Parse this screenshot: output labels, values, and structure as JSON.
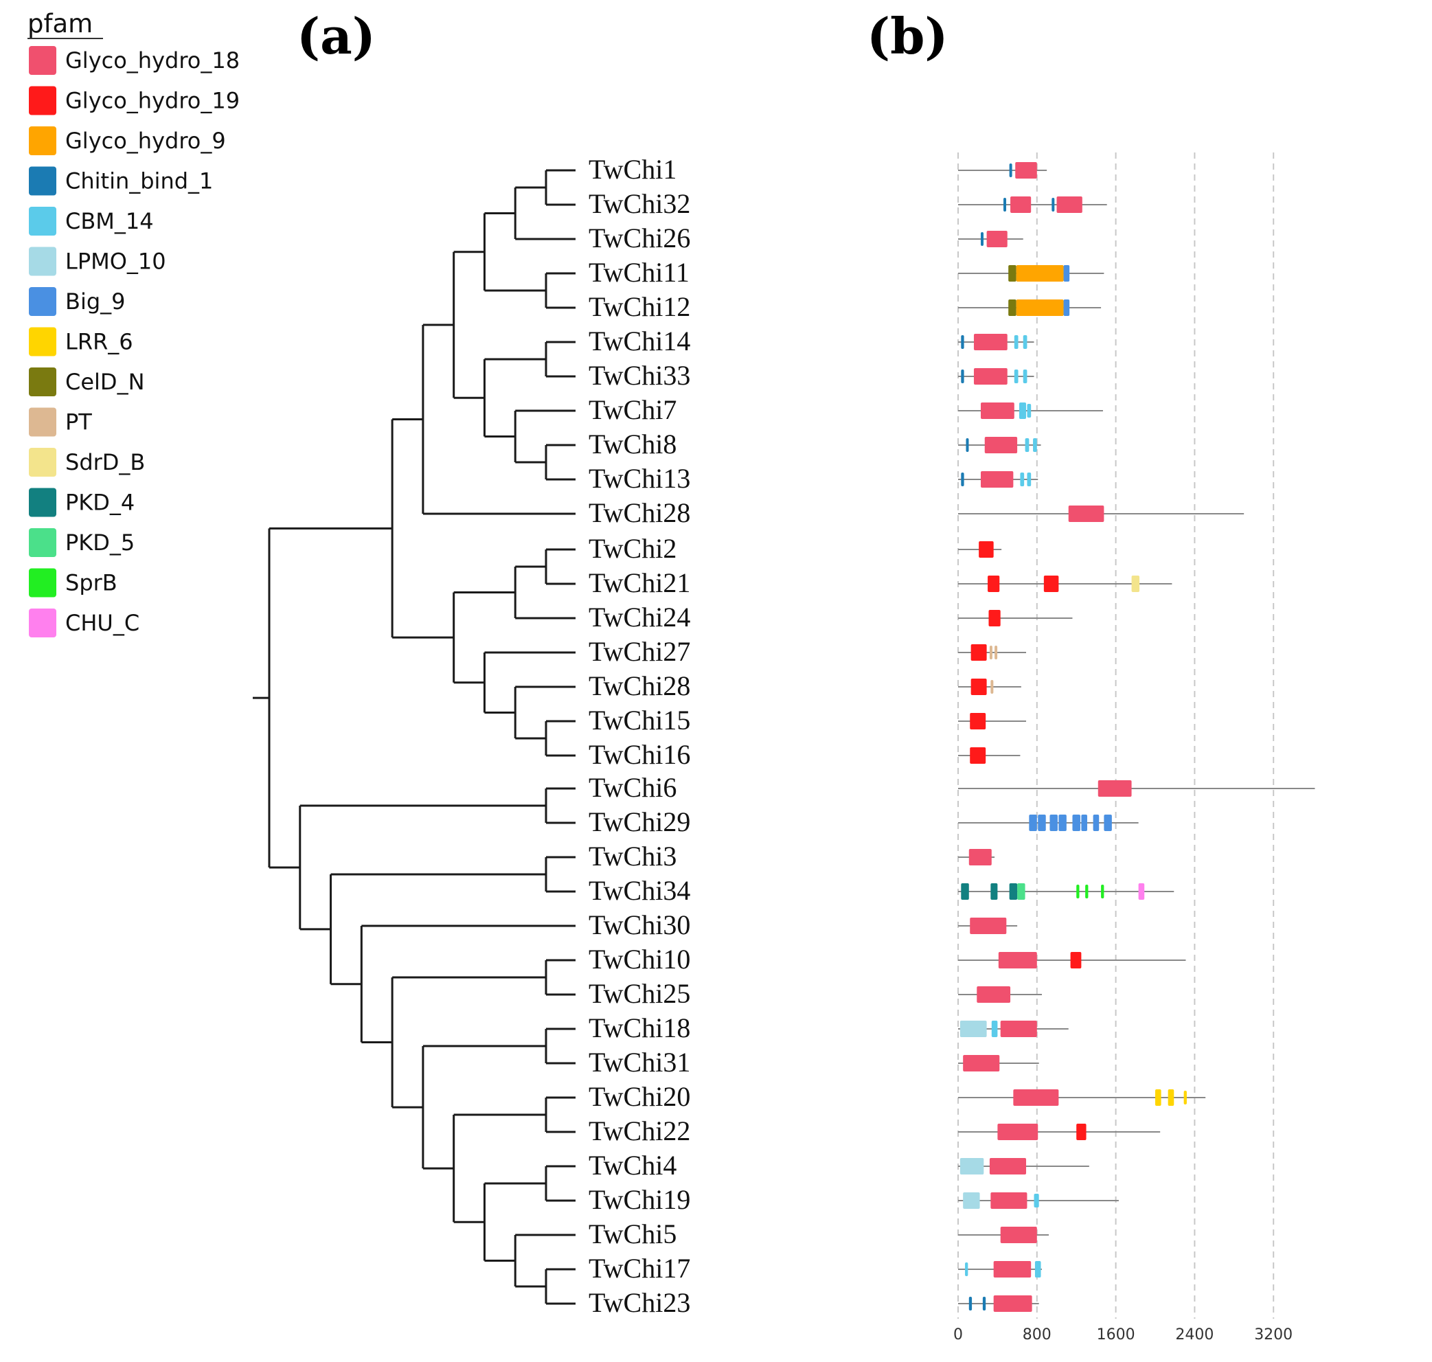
{
  "legend": {
    "title": "pfam",
    "items": [
      {
        "name": "Glyco_hydro_18",
        "color": "#F0506E"
      },
      {
        "name": "Glyco_hydro_19",
        "color": "#FF1A1A"
      },
      {
        "name": "Glyco_hydro_9",
        "color": "#FFA500"
      },
      {
        "name": "Chitin_bind_1",
        "color": "#1B7BB3"
      },
      {
        "name": "CBM_14",
        "color": "#5BCBEA"
      },
      {
        "name": "LPMO_10",
        "color": "#A6DAE6"
      },
      {
        "name": "Big_9",
        "color": "#4A90E2"
      },
      {
        "name": "LRR_6",
        "color": "#FFD500"
      },
      {
        "name": "CelD_N",
        "color": "#7A7A10"
      },
      {
        "name": "PT",
        "color": "#DDB892"
      },
      {
        "name": "SdrD_B",
        "color": "#F3E48C"
      },
      {
        "name": "PKD_4",
        "color": "#128080"
      },
      {
        "name": "PKD_5",
        "color": "#4BE08A"
      },
      {
        "name": "SprB",
        "color": "#22EE22"
      },
      {
        "name": "CHU_C",
        "color": "#FF80EE"
      }
    ]
  },
  "panels": {
    "a": "(a)",
    "b": "(b)"
  },
  "tree": {
    "leaves": [
      "TwChi1",
      "TwChi32",
      "TwChi26",
      "TwChi11",
      "TwChi12",
      "TwChi14",
      "TwChi33",
      "TwChi7",
      "TwChi8",
      "TwChi13",
      "TwChi28",
      "TwChi2",
      "TwChi21",
      "TwChi24",
      "TwChi27",
      "TwChi28",
      "TwChi15",
      "TwChi16",
      "TwChi6",
      "TwChi29",
      "TwChi3",
      "TwChi34",
      "TwChi30",
      "TwChi10",
      "TwChi25",
      "TwChi18",
      "TwChi31",
      "TwChi20",
      "TwChi22",
      "TwChi4",
      "TwChi19",
      "TwChi5",
      "TwChi17",
      "TwChi23"
    ],
    "newick": "(((((((TwChi1,TwChi32),TwChi26),(TwChi11,TwChi12)),((TwChi14,TwChi33),(TwChi7,(TwChi8,TwChi13)))),TwChi28),(((TwChi2,TwChi21),TwChi24),(TwChi27,(TwChi28,(TwChi15,TwChi16))))),((TwChi6,TwChi29),((TwChi3,TwChi34),(TwChi30,((TwChi10,TwChi25),((TwChi18,TwChi31),((TwChi20,TwChi22),((TwChi4,TwChi19),(TwChi5,(TwChi17,TwChi23))))))))));"
  },
  "chart_data": {
    "type": "domain-architecture",
    "axis": {
      "min": 0,
      "max": 3600,
      "ticks": [
        0,
        800,
        1600,
        2400,
        3200
      ]
    },
    "proteins": [
      {
        "name": "TwChi1",
        "length": 900,
        "domains": [
          {
            "pfam": "Chitin_bind_1",
            "start": 520,
            "end": 545
          },
          {
            "pfam": "Glyco_hydro_18",
            "start": 580,
            "end": 800
          }
        ]
      },
      {
        "name": "TwChi32",
        "length": 1510,
        "domains": [
          {
            "pfam": "Chitin_bind_1",
            "start": 460,
            "end": 485
          },
          {
            "pfam": "Glyco_hydro_18",
            "start": 530,
            "end": 740
          },
          {
            "pfam": "Chitin_bind_1",
            "start": 950,
            "end": 975
          },
          {
            "pfam": "Glyco_hydro_18",
            "start": 1000,
            "end": 1260
          }
        ]
      },
      {
        "name": "TwChi26",
        "length": 660,
        "domains": [
          {
            "pfam": "Chitin_bind_1",
            "start": 230,
            "end": 255
          },
          {
            "pfam": "Glyco_hydro_18",
            "start": 290,
            "end": 500
          }
        ]
      },
      {
        "name": "TwChi11",
        "length": 1480,
        "domains": [
          {
            "pfam": "CelD_N",
            "start": 510,
            "end": 590
          },
          {
            "pfam": "Glyco_hydro_9",
            "start": 590,
            "end": 1070
          },
          {
            "pfam": "Big_9",
            "start": 1070,
            "end": 1130
          }
        ]
      },
      {
        "name": "TwChi12",
        "length": 1450,
        "domains": [
          {
            "pfam": "CelD_N",
            "start": 510,
            "end": 590
          },
          {
            "pfam": "Glyco_hydro_9",
            "start": 590,
            "end": 1070
          },
          {
            "pfam": "Big_9",
            "start": 1070,
            "end": 1130
          }
        ]
      },
      {
        "name": "TwChi14",
        "length": 770,
        "domains": [
          {
            "pfam": "Chitin_bind_1",
            "start": 30,
            "end": 60
          },
          {
            "pfam": "Glyco_hydro_18",
            "start": 160,
            "end": 500
          },
          {
            "pfam": "CBM_14",
            "start": 570,
            "end": 610
          },
          {
            "pfam": "CBM_14",
            "start": 660,
            "end": 700
          }
        ]
      },
      {
        "name": "TwChi33",
        "length": 770,
        "domains": [
          {
            "pfam": "Chitin_bind_1",
            "start": 30,
            "end": 60
          },
          {
            "pfam": "Glyco_hydro_18",
            "start": 160,
            "end": 500
          },
          {
            "pfam": "CBM_14",
            "start": 570,
            "end": 610
          },
          {
            "pfam": "CBM_14",
            "start": 660,
            "end": 700
          }
        ]
      },
      {
        "name": "TwChi7",
        "length": 1470,
        "domains": [
          {
            "pfam": "Glyco_hydro_18",
            "start": 230,
            "end": 570
          },
          {
            "pfam": "CBM_14",
            "start": 620,
            "end": 690
          },
          {
            "pfam": "CBM_14",
            "start": 700,
            "end": 740
          }
        ]
      },
      {
        "name": "TwChi8",
        "length": 840,
        "domains": [
          {
            "pfam": "Chitin_bind_1",
            "start": 80,
            "end": 105
          },
          {
            "pfam": "Glyco_hydro_18",
            "start": 270,
            "end": 600
          },
          {
            "pfam": "CBM_14",
            "start": 680,
            "end": 720
          },
          {
            "pfam": "CBM_14",
            "start": 760,
            "end": 800
          }
        ]
      },
      {
        "name": "TwChi13",
        "length": 810,
        "domains": [
          {
            "pfam": "Chitin_bind_1",
            "start": 30,
            "end": 60
          },
          {
            "pfam": "Glyco_hydro_18",
            "start": 230,
            "end": 560
          },
          {
            "pfam": "CBM_14",
            "start": 630,
            "end": 670
          },
          {
            "pfam": "CBM_14",
            "start": 700,
            "end": 740
          }
        ]
      },
      {
        "name": "TwChi28",
        "length": 2900,
        "domains": [
          {
            "pfam": "Glyco_hydro_18",
            "start": 1120,
            "end": 1480
          }
        ]
      },
      {
        "name": "TwChi2",
        "length": 440,
        "domains": [
          {
            "pfam": "Glyco_hydro_19",
            "start": 210,
            "end": 360
          }
        ]
      },
      {
        "name": "TwChi21",
        "length": 2170,
        "domains": [
          {
            "pfam": "Glyco_hydro_19",
            "start": 300,
            "end": 420
          },
          {
            "pfam": "Glyco_hydro_19",
            "start": 870,
            "end": 1020
          },
          {
            "pfam": "SdrD_B",
            "start": 1760,
            "end": 1840
          }
        ]
      },
      {
        "name": "TwChi24",
        "length": 1160,
        "domains": [
          {
            "pfam": "Glyco_hydro_19",
            "start": 310,
            "end": 430
          }
        ]
      },
      {
        "name": "TwChi27",
        "length": 690,
        "domains": [
          {
            "pfam": "Glyco_hydro_19",
            "start": 130,
            "end": 290
          },
          {
            "pfam": "PT",
            "start": 320,
            "end": 345
          },
          {
            "pfam": "PT",
            "start": 370,
            "end": 395
          }
        ]
      },
      {
        "name": "TwChi28",
        "length": 640,
        "domains": [
          {
            "pfam": "Glyco_hydro_19",
            "start": 130,
            "end": 290
          },
          {
            "pfam": "PT",
            "start": 330,
            "end": 355
          }
        ]
      },
      {
        "name": "TwChi15",
        "length": 690,
        "domains": [
          {
            "pfam": "Glyco_hydro_19",
            "start": 120,
            "end": 280
          }
        ]
      },
      {
        "name": "TwChi16",
        "length": 630,
        "domains": [
          {
            "pfam": "Glyco_hydro_19",
            "start": 120,
            "end": 280
          }
        ]
      },
      {
        "name": "TwChi6",
        "length": 3620,
        "domains": [
          {
            "pfam": "Glyco_hydro_18",
            "start": 1420,
            "end": 1760
          }
        ]
      },
      {
        "name": "TwChi29",
        "length": 1830,
        "domains": [
          {
            "pfam": "Big_9",
            "start": 720,
            "end": 800
          },
          {
            "pfam": "Big_9",
            "start": 810,
            "end": 890
          },
          {
            "pfam": "Big_9",
            "start": 930,
            "end": 1010
          },
          {
            "pfam": "Big_9",
            "start": 1020,
            "end": 1100
          },
          {
            "pfam": "Big_9",
            "start": 1160,
            "end": 1240
          },
          {
            "pfam": "Big_9",
            "start": 1250,
            "end": 1310
          },
          {
            "pfam": "Big_9",
            "start": 1370,
            "end": 1430
          },
          {
            "pfam": "Big_9",
            "start": 1480,
            "end": 1560
          }
        ]
      },
      {
        "name": "TwChi3",
        "length": 370,
        "domains": [
          {
            "pfam": "Glyco_hydro_18",
            "start": 110,
            "end": 340
          }
        ]
      },
      {
        "name": "TwChi34",
        "length": 2190,
        "domains": [
          {
            "pfam": "PKD_4",
            "start": 30,
            "end": 110
          },
          {
            "pfam": "PKD_4",
            "start": 330,
            "end": 400
          },
          {
            "pfam": "PKD_4",
            "start": 520,
            "end": 600
          },
          {
            "pfam": "PKD_5",
            "start": 600,
            "end": 680
          },
          {
            "pfam": "SprB",
            "start": 1200,
            "end": 1230
          },
          {
            "pfam": "SprB",
            "start": 1290,
            "end": 1320
          },
          {
            "pfam": "SprB",
            "start": 1450,
            "end": 1480
          },
          {
            "pfam": "CHU_C",
            "start": 1830,
            "end": 1890
          }
        ]
      },
      {
        "name": "TwChi30",
        "length": 600,
        "domains": [
          {
            "pfam": "Glyco_hydro_18",
            "start": 120,
            "end": 490
          }
        ]
      },
      {
        "name": "TwChi10",
        "length": 2310,
        "domains": [
          {
            "pfam": "Glyco_hydro_18",
            "start": 410,
            "end": 800
          },
          {
            "pfam": "Glyco_hydro_19",
            "start": 1140,
            "end": 1250
          }
        ]
      },
      {
        "name": "TwChi25",
        "length": 850,
        "domains": [
          {
            "pfam": "Glyco_hydro_18",
            "start": 190,
            "end": 530
          }
        ]
      },
      {
        "name": "TwChi18",
        "length": 1120,
        "domains": [
          {
            "pfam": "LPMO_10",
            "start": 20,
            "end": 290
          },
          {
            "pfam": "CBM_14",
            "start": 340,
            "end": 400
          },
          {
            "pfam": "Glyco_hydro_18",
            "start": 430,
            "end": 800
          }
        ]
      },
      {
        "name": "TwChi31",
        "length": 820,
        "domains": [
          {
            "pfam": "Glyco_hydro_18",
            "start": 50,
            "end": 420
          }
        ]
      },
      {
        "name": "TwChi20",
        "length": 2510,
        "domains": [
          {
            "pfam": "Glyco_hydro_18",
            "start": 560,
            "end": 1020
          },
          {
            "pfam": "LRR_6",
            "start": 2000,
            "end": 2060
          },
          {
            "pfam": "LRR_6",
            "start": 2130,
            "end": 2190
          },
          {
            "pfam": "LRR_6",
            "start": 2290,
            "end": 2320
          }
        ]
      },
      {
        "name": "TwChi22",
        "length": 2050,
        "domains": [
          {
            "pfam": "Glyco_hydro_18",
            "start": 400,
            "end": 810
          },
          {
            "pfam": "Glyco_hydro_19",
            "start": 1200,
            "end": 1300
          }
        ]
      },
      {
        "name": "TwChi4",
        "length": 1330,
        "domains": [
          {
            "pfam": "LPMO_10",
            "start": 20,
            "end": 260
          },
          {
            "pfam": "Glyco_hydro_18",
            "start": 320,
            "end": 690
          }
        ]
      },
      {
        "name": "TwChi19",
        "length": 1630,
        "domains": [
          {
            "pfam": "LPMO_10",
            "start": 50,
            "end": 220
          },
          {
            "pfam": "Glyco_hydro_18",
            "start": 330,
            "end": 700
          },
          {
            "pfam": "CBM_14",
            "start": 770,
            "end": 820
          }
        ]
      },
      {
        "name": "TwChi5",
        "length": 920,
        "domains": [
          {
            "pfam": "Glyco_hydro_18",
            "start": 430,
            "end": 800
          }
        ]
      },
      {
        "name": "TwChi17",
        "length": 850,
        "domains": [
          {
            "pfam": "CBM_14",
            "start": 70,
            "end": 100
          },
          {
            "pfam": "Glyco_hydro_18",
            "start": 360,
            "end": 740
          },
          {
            "pfam": "CBM_14",
            "start": 780,
            "end": 840
          }
        ]
      },
      {
        "name": "TwChi23",
        "length": 820,
        "domains": [
          {
            "pfam": "Chitin_bind_1",
            "start": 110,
            "end": 140
          },
          {
            "pfam": "Chitin_bind_1",
            "start": 250,
            "end": 280
          },
          {
            "pfam": "Glyco_hydro_18",
            "start": 360,
            "end": 750
          }
        ]
      }
    ]
  }
}
